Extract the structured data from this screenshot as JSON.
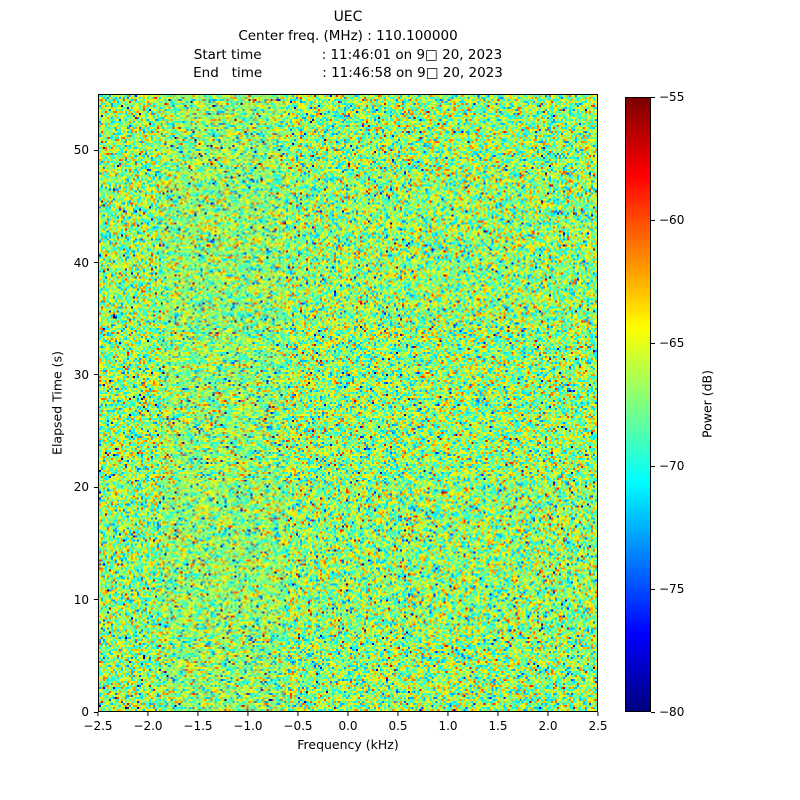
{
  "chart_data": {
    "type": "heatmap",
    "title": "UEC",
    "title_lines": [
      "Center freq. (MHz) : 110.100000",
      "Start time              : 11:46:01 on 9□ 20, 2023",
      "End   time              : 11:46:58 on 9□ 20, 2023"
    ],
    "xlabel": "Frequency (kHz)",
    "ylabel": "Elapsed Time (s)",
    "xlim": [
      -2.5,
      2.5
    ],
    "ylim": [
      0,
      55
    ],
    "grid": false,
    "legend": "none",
    "colormap": "jet",
    "xticks": {
      "values": [
        -2.5,
        -2.0,
        -1.5,
        -1.0,
        -0.5,
        0.0,
        0.5,
        1.0,
        1.5,
        2.0,
        2.5
      ],
      "labels": [
        "−2.5",
        "−2.0",
        "−1.5",
        "−1.0",
        "−0.5",
        "0.0",
        "0.5",
        "1.0",
        "1.5",
        "2.0",
        "2.5"
      ]
    },
    "yticks": {
      "values": [
        0,
        10,
        20,
        30,
        40,
        50
      ],
      "labels": [
        "0",
        "10",
        "20",
        "30",
        "40",
        "50"
      ]
    },
    "colorbar": {
      "label": "Power (dB)",
      "min": -80,
      "max": -55,
      "ticks": {
        "values": [
          -55,
          -60,
          -65,
          -70,
          -75,
          -80
        ],
        "labels": [
          "−55",
          "−60",
          "−65",
          "−70",
          "−75",
          "−80"
        ]
      }
    },
    "noise_model": {
      "description": "uniform random speckle noise over entire spectrogram, no visible signal structure",
      "mean_db": -67,
      "std_db": 3,
      "outlier_fraction": 0.035
    },
    "cells": {
      "cols": 250,
      "rows": 309
    }
  }
}
